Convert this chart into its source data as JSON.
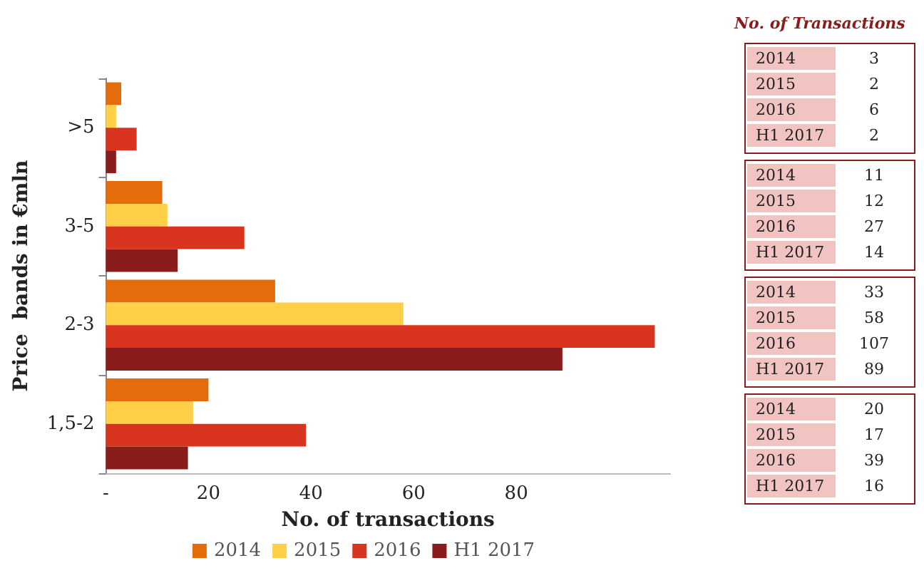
{
  "chart_data": [
    {
      "type": "bar",
      "orientation": "horizontal",
      "categories": [
        ">5",
        "3-5",
        "2-3",
        "1,5-2"
      ],
      "series": [
        {
          "name": "2014",
          "color": "#e46c0a",
          "values": [
            3,
            11,
            33,
            20
          ]
        },
        {
          "name": "2015",
          "color": "#ffcf47",
          "values": [
            2,
            12,
            58,
            17
          ]
        },
        {
          "name": "2016",
          "color": "#d9341f",
          "values": [
            6,
            27,
            107,
            39
          ]
        },
        {
          "name": "H1 2017",
          "color": "#8b1c1c",
          "values": [
            2,
            14,
            89,
            16
          ]
        }
      ],
      "xlabel": "No. of transactions",
      "ylabel": "Price  bands in €mln",
      "xlim": [
        0,
        110
      ],
      "xticks": [
        {
          "value": 0,
          "label": "-"
        },
        20,
        40,
        60,
        80
      ],
      "legend": "bottom",
      "grid": false
    },
    {
      "type": "heatmap",
      "title": "No. of Transactions",
      "categories": [
        null
      ],
      "y_categories": [
        "2014",
        "2015",
        "2016",
        "H1 2017"
      ],
      "cells": [
        [
          3
        ],
        [
          2
        ],
        [
          6
        ],
        [
          2
        ]
      ],
      "data_labels": true
    },
    {
      "type": "heatmap",
      "categories": [
        null
      ],
      "y_categories": [
        "2014",
        "2015",
        "2016",
        "H1 2017"
      ],
      "cells": [
        [
          11
        ],
        [
          12
        ],
        [
          27
        ],
        [
          14
        ]
      ],
      "data_labels": true
    },
    {
      "type": "heatmap",
      "categories": [
        null
      ],
      "y_categories": [
        "2014",
        "2015",
        "2016",
        "H1 2017"
      ],
      "cells": [
        [
          33
        ],
        [
          58
        ],
        [
          107
        ],
        [
          89
        ]
      ],
      "data_labels": true
    },
    {
      "type": "heatmap",
      "categories": [
        null
      ],
      "y_categories": [
        "2014",
        "2015",
        "2016",
        "H1 2017"
      ],
      "cells": [
        [
          20
        ],
        [
          17
        ],
        [
          39
        ],
        [
          16
        ]
      ],
      "data_labels": true
    }
  ]
}
